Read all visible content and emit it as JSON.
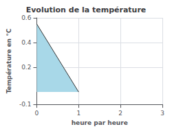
{
  "chart_data": {
    "type": "area",
    "title": "Evolution de la température",
    "xlabel": "heure par heure",
    "ylabel": "Température en °C",
    "xlim": [
      0,
      3
    ],
    "ylim": [
      -0.1,
      0.6
    ],
    "xticks": [
      0,
      1,
      2,
      3
    ],
    "yticks": [
      -0.1,
      0.2,
      0.4,
      0.6
    ],
    "grid": true,
    "series": [
      {
        "type": "area",
        "color": "#a8d8e8",
        "x": [
          0,
          0,
          1
        ],
        "values": [
          0,
          0.55,
          0.0
        ]
      },
      {
        "type": "line",
        "color": "#333333",
        "x": [
          0,
          1
        ],
        "values": [
          0.55,
          0.0
        ]
      }
    ]
  }
}
